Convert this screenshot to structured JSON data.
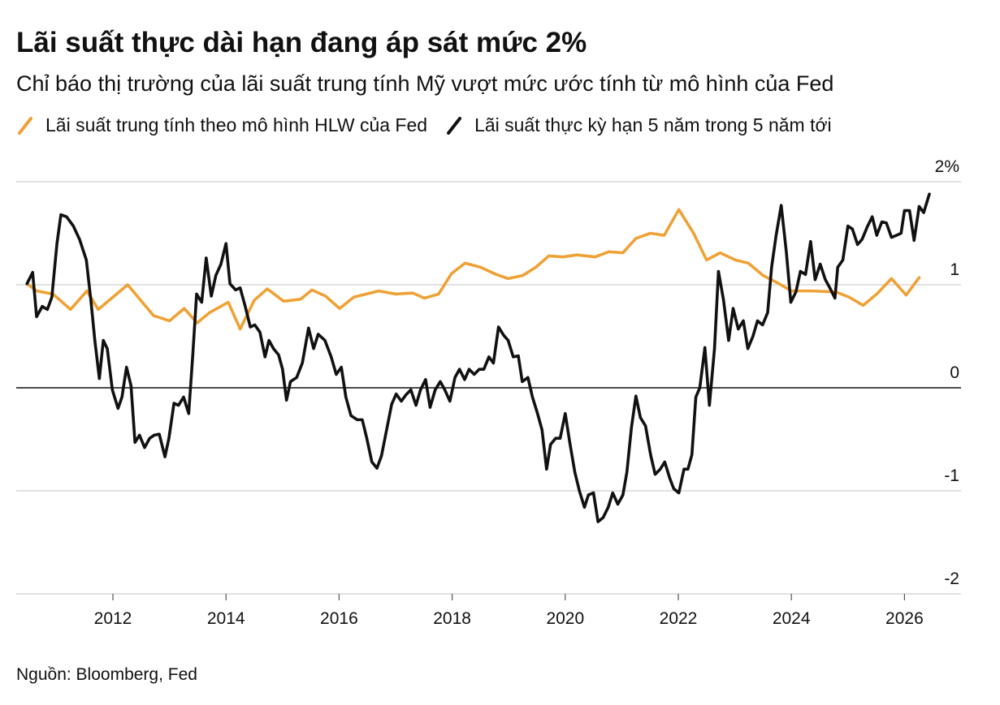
{
  "chart_data": {
    "type": "line",
    "title": "Lãi suất thực dài hạn đang áp sát mức 2%",
    "subtitle": "Chỉ báo thị trường của lãi suất trung tính Mỹ vượt mức ước tính từ mô hình của Fed",
    "source": "Nguồn: Bloomberg, Fed",
    "xlim": [
      2010.29,
      2027.0
    ],
    "xticks": [
      2012,
      2014,
      2016,
      2018,
      2020,
      2022,
      2024,
      2026
    ],
    "ylim": [
      -2,
      2
    ],
    "yticks": [
      -2,
      -1,
      0,
      1,
      {
        "value": 2,
        "label": "2%"
      }
    ],
    "grid": true,
    "series": [
      {
        "name": "Lãi suất trung tính theo mô hình HLW của Fed",
        "color": "#eea236",
        "x": [
          2010.48,
          2010.65,
          2010.94,
          2011.25,
          2011.54,
          2011.74,
          2012.26,
          2012.72,
          2013.0,
          2013.26,
          2013.49,
          2013.71,
          2014.04,
          2014.25,
          2014.5,
          2014.73,
          2015.02,
          2015.32,
          2015.52,
          2015.76,
          2016.01,
          2016.26,
          2016.7,
          2017.0,
          2017.3,
          2017.51,
          2017.76,
          2017.99,
          2018.23,
          2018.5,
          2018.78,
          2018.99,
          2019.25,
          2019.48,
          2019.71,
          2019.96,
          2020.21,
          2020.53,
          2020.77,
          2021.02,
          2021.25,
          2021.51,
          2021.75,
          2022.01,
          2022.27,
          2022.5,
          2022.74,
          2023.01,
          2023.24,
          2023.5,
          2023.75,
          2024.0,
          2024.36,
          2024.79,
          2025.02,
          2025.27,
          2025.51,
          2025.77,
          2026.03,
          2026.26
        ],
        "values": [
          1.01,
          0.94,
          0.91,
          0.76,
          0.94,
          0.76,
          1.0,
          0.7,
          0.65,
          0.77,
          0.63,
          0.73,
          0.83,
          0.57,
          0.85,
          0.96,
          0.84,
          0.86,
          0.95,
          0.89,
          0.77,
          0.88,
          0.94,
          0.91,
          0.92,
          0.87,
          0.91,
          1.11,
          1.21,
          1.17,
          1.1,
          1.06,
          1.09,
          1.17,
          1.28,
          1.27,
          1.29,
          1.27,
          1.32,
          1.31,
          1.45,
          1.5,
          1.48,
          1.73,
          1.5,
          1.24,
          1.31,
          1.24,
          1.21,
          1.09,
          1.02,
          0.94,
          0.94,
          0.93,
          0.88,
          0.8,
          0.91,
          1.06,
          0.9,
          1.07
        ]
      },
      {
        "name": "Lãi suất thực kỳ hạn 5 năm trong 5 năm tới",
        "color": "#111111",
        "x": [
          2010.48,
          2010.58,
          2010.65,
          2010.75,
          2010.84,
          2010.92,
          2011.01,
          2011.08,
          2011.18,
          2011.3,
          2011.41,
          2011.53,
          2011.61,
          2011.68,
          2011.76,
          2011.83,
          2011.9,
          2011.99,
          2012.09,
          2012.16,
          2012.24,
          2012.32,
          2012.39,
          2012.47,
          2012.56,
          2012.65,
          2012.73,
          2012.82,
          2012.92,
          2012.99,
          2013.08,
          2013.16,
          2013.25,
          2013.34,
          2013.41,
          2013.48,
          2013.57,
          2013.65,
          2013.74,
          2013.82,
          2013.91,
          2014.0,
          2014.07,
          2014.17,
          2014.25,
          2014.34,
          2014.43,
          2014.51,
          2014.6,
          2014.69,
          2014.76,
          2014.84,
          2014.93,
          2015.0,
          2015.07,
          2015.14,
          2015.25,
          2015.35,
          2015.46,
          2015.55,
          2015.63,
          2015.75,
          2015.86,
          2015.95,
          2016.04,
          2016.12,
          2016.21,
          2016.32,
          2016.41,
          2016.49,
          2016.58,
          2016.67,
          2016.75,
          2016.84,
          2016.93,
          2017.01,
          2017.1,
          2017.18,
          2017.27,
          2017.36,
          2017.44,
          2017.53,
          2017.61,
          2017.7,
          2017.79,
          2017.87,
          2017.96,
          2018.05,
          2018.13,
          2018.22,
          2018.3,
          2018.39,
          2018.48,
          2018.56,
          2018.65,
          2018.73,
          2018.82,
          2018.91,
          2018.99,
          2019.08,
          2019.17,
          2019.24,
          2019.34,
          2019.42,
          2019.51,
          2019.59,
          2019.67,
          2019.74,
          2019.83,
          2019.91,
          2020.0,
          2020.08,
          2020.17,
          2020.25,
          2020.34,
          2020.41,
          2020.5,
          2020.58,
          2020.67,
          2020.76,
          2020.84,
          2020.93,
          2021.02,
          2021.09,
          2021.17,
          2021.25,
          2021.33,
          2021.42,
          2021.51,
          2021.59,
          2021.68,
          2021.76,
          2021.85,
          2021.92,
          2022.01,
          2022.1,
          2022.17,
          2022.24,
          2022.31,
          2022.38,
          2022.47,
          2022.55,
          2022.64,
          2022.71,
          2022.8,
          2022.89,
          2022.97,
          2023.06,
          2023.15,
          2023.23,
          2023.32,
          2023.4,
          2023.49,
          2023.58,
          2023.65,
          2023.73,
          2023.82,
          2023.91,
          2023.99,
          2024.08,
          2024.16,
          2024.25,
          2024.34,
          2024.42,
          2024.51,
          2024.6,
          2024.68,
          2024.77,
          2024.82,
          2024.91,
          2025.0,
          2025.08,
          2025.17,
          2025.25,
          2025.34,
          2025.43,
          2025.51,
          2025.6,
          2025.68,
          2025.77,
          2025.86,
          2025.94,
          2026.0,
          2026.09,
          2026.17,
          2026.26,
          2026.34,
          2026.44
        ],
        "values": [
          1.01,
          1.12,
          0.69,
          0.79,
          0.76,
          0.88,
          1.4,
          1.68,
          1.66,
          1.57,
          1.44,
          1.24,
          0.85,
          0.46,
          0.09,
          0.46,
          0.38,
          -0.02,
          -0.2,
          -0.09,
          0.2,
          0.02,
          -0.53,
          -0.46,
          -0.58,
          -0.49,
          -0.46,
          -0.45,
          -0.67,
          -0.49,
          -0.15,
          -0.17,
          -0.09,
          -0.25,
          0.3,
          0.91,
          0.83,
          1.26,
          0.89,
          1.09,
          1.2,
          1.4,
          1.01,
          0.95,
          0.97,
          0.79,
          0.59,
          0.61,
          0.54,
          0.3,
          0.46,
          0.38,
          0.32,
          0.18,
          -0.12,
          0.06,
          0.1,
          0.24,
          0.58,
          0.38,
          0.52,
          0.46,
          0.3,
          0.13,
          0.2,
          -0.09,
          -0.27,
          -0.31,
          -0.31,
          -0.49,
          -0.72,
          -0.78,
          -0.66,
          -0.41,
          -0.16,
          -0.06,
          -0.13,
          -0.07,
          -0.02,
          -0.17,
          -0.02,
          0.08,
          -0.19,
          -0.02,
          0.06,
          -0.02,
          -0.13,
          0.1,
          0.18,
          0.08,
          0.18,
          0.13,
          0.18,
          0.18,
          0.3,
          0.24,
          0.59,
          0.51,
          0.46,
          0.3,
          0.31,
          0.06,
          0.1,
          -0.09,
          -0.25,
          -0.41,
          -0.79,
          -0.55,
          -0.49,
          -0.49,
          -0.25,
          -0.53,
          -0.82,
          -1.0,
          -1.16,
          -1.04,
          -1.02,
          -1.3,
          -1.26,
          -1.16,
          -1.02,
          -1.13,
          -1.04,
          -0.82,
          -0.39,
          -0.08,
          -0.29,
          -0.37,
          -0.65,
          -0.84,
          -0.79,
          -0.72,
          -0.88,
          -0.98,
          -1.02,
          -0.79,
          -0.79,
          -0.65,
          -0.09,
          0.0,
          0.39,
          -0.17,
          0.38,
          1.13,
          0.85,
          0.46,
          0.77,
          0.57,
          0.65,
          0.38,
          0.5,
          0.65,
          0.61,
          0.73,
          1.17,
          1.48,
          1.77,
          1.32,
          0.83,
          0.93,
          1.13,
          1.1,
          1.42,
          1.05,
          1.2,
          1.05,
          0.97,
          0.87,
          1.17,
          1.24,
          1.57,
          1.54,
          1.39,
          1.44,
          1.56,
          1.66,
          1.48,
          1.61,
          1.6,
          1.46,
          1.48,
          1.5,
          1.72,
          1.72,
          1.43,
          1.76,
          1.7,
          1.88
        ]
      }
    ]
  }
}
